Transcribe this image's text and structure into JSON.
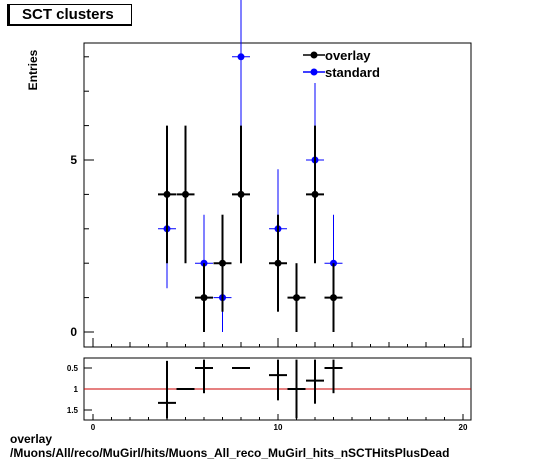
{
  "title": "SCT clusters",
  "footer_line1": "overlay",
  "footer_line2": "/Muons/All/reco/MuGirl/hits/Muons_All_reco_MuGirl_hits_nSCTHitsPlusDead",
  "colors": {
    "overlay": "#000000",
    "standard": "#0000ff",
    "ratio_line": "#cc0000"
  },
  "chart_data": [
    {
      "type": "scatter",
      "title": "SCT clusters",
      "ylabel": "Entries",
      "xlim": [
        0,
        20
      ],
      "ylim": [
        0,
        8
      ],
      "y_tick_labels": [
        "0",
        "5"
      ],
      "legend_position": "top-right",
      "series": [
        {
          "name": "overlay",
          "x": [
            4,
            5,
            6,
            7,
            8,
            10,
            11,
            12,
            13
          ],
          "y": [
            4,
            4,
            1,
            2,
            4,
            2,
            1,
            4,
            1
          ],
          "y_err": [
            2,
            2,
            1,
            1.41,
            2,
            1.41,
            1,
            2,
            1
          ]
        },
        {
          "name": "standard",
          "x": [
            4,
            6,
            7,
            8,
            10,
            12,
            13
          ],
          "y": [
            3,
            2,
            1,
            8,
            3,
            5,
            2
          ],
          "y_err": [
            1.73,
            1.41,
            1,
            2.83,
            1.73,
            2.24,
            1.41
          ]
        }
      ]
    },
    {
      "type": "scatter",
      "xlim": [
        0,
        20
      ],
      "ylim": [
        0.3,
        1.7
      ],
      "x_tick_labels": [
        "0",
        "10",
        "20"
      ],
      "y_tick_labels": [
        "0.5",
        "1",
        "1.5"
      ],
      "reference_line": 1,
      "series": [
        {
          "x": [
            4,
            5,
            6,
            8,
            10,
            11,
            12,
            13
          ],
          "y": [
            1.33,
            1.0,
            0.5,
            0.5,
            0.67,
            1.0,
            0.8,
            0.5
          ],
          "y_err": [
            1.0,
            0.0,
            0.6,
            0.0,
            0.6,
            0.9,
            0.55,
            0.6
          ]
        }
      ]
    }
  ]
}
